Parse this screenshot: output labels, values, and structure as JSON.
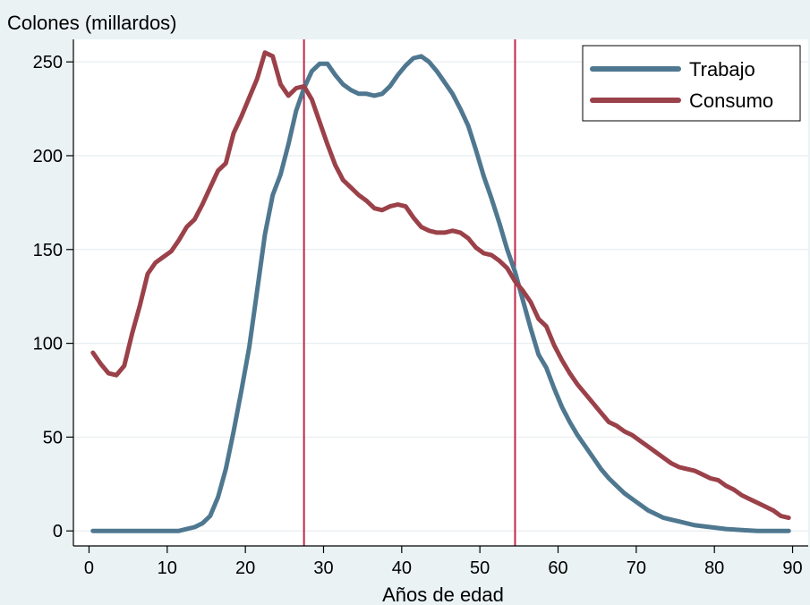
{
  "chart_data": {
    "type": "line",
    "ylabel": "Colones (millardos)",
    "xlabel": "Años de edad",
    "xlim": [
      -2,
      92
    ],
    "ylim": [
      -8,
      262
    ],
    "xticks": [
      0,
      10,
      20,
      30,
      40,
      50,
      60,
      70,
      80,
      90
    ],
    "yticks": [
      0,
      50,
      100,
      150,
      200,
      250
    ],
    "grid": true,
    "legend_position": "top-right",
    "vlines": [
      27.5,
      54.5
    ],
    "vline_color": "#c0274a",
    "series": [
      {
        "name": "Trabajo",
        "color": "#4f7890",
        "x": [
          0.5,
          2.5,
          4.5,
          6.5,
          8.5,
          10.5,
          11.5,
          12.5,
          13.5,
          14.5,
          15.5,
          16.5,
          17.5,
          18.5,
          19.5,
          20.5,
          21.5,
          22.5,
          23.5,
          24.5,
          25.5,
          26.5,
          27.5,
          28.5,
          29.5,
          30.5,
          31.5,
          32.5,
          33.5,
          34.5,
          35.5,
          36.5,
          37.5,
          38.5,
          39.5,
          40.5,
          41.5,
          42.5,
          43.5,
          44.5,
          45.5,
          46.5,
          47.5,
          48.5,
          49.5,
          50.5,
          51.5,
          52.5,
          53.5,
          54.5,
          55.5,
          56.5,
          57.5,
          58.5,
          59.5,
          60.5,
          61.5,
          62.5,
          63.5,
          64.5,
          65.5,
          66.5,
          67.5,
          68.5,
          69.5,
          70.5,
          71.5,
          72.5,
          73.5,
          74.5,
          75.5,
          77.5,
          79.5,
          81.5,
          83.5,
          85.5,
          87.5,
          89.5
        ],
        "y": [
          0,
          0,
          0,
          0,
          0,
          0,
          0,
          1,
          2,
          4,
          8,
          18,
          33,
          53,
          75,
          98,
          128,
          158,
          179,
          190,
          206,
          224,
          236,
          245,
          249,
          249,
          243,
          238,
          235,
          233,
          233,
          232,
          233,
          237,
          243,
          248,
          252,
          253,
          250,
          245,
          239,
          233,
          225,
          216,
          203,
          189,
          177,
          164,
          150,
          138,
          123,
          108,
          94,
          87,
          76,
          66,
          58,
          51,
          45,
          39,
          33,
          28,
          24,
          20,
          17,
          14,
          11,
          9,
          7,
          6,
          5,
          3,
          2,
          1,
          0.5,
          0,
          0,
          0
        ]
      },
      {
        "name": "Consumo",
        "color": "#9b4149",
        "x": [
          0.5,
          1.5,
          2.5,
          3.5,
          4.5,
          5.5,
          6.5,
          7.5,
          8.5,
          9.5,
          10.5,
          11.5,
          12.5,
          13.5,
          14.5,
          15.5,
          16.5,
          17.5,
          18.5,
          19.5,
          20.5,
          21.5,
          22.5,
          23.5,
          24.5,
          25.5,
          26.5,
          27.5,
          28.5,
          29.5,
          30.5,
          31.5,
          32.5,
          33.5,
          34.5,
          35.5,
          36.5,
          37.5,
          38.5,
          39.5,
          40.5,
          41.5,
          42.5,
          43.5,
          44.5,
          45.5,
          46.5,
          47.5,
          48.5,
          49.5,
          50.5,
          51.5,
          52.5,
          53.5,
          54.5,
          55.5,
          56.5,
          57.5,
          58.5,
          59.5,
          60.5,
          61.5,
          62.5,
          63.5,
          64.5,
          65.5,
          66.5,
          67.5,
          68.5,
          69.5,
          70.5,
          71.5,
          72.5,
          73.5,
          74.5,
          75.5,
          76.5,
          77.5,
          78.5,
          79.5,
          80.5,
          81.5,
          82.5,
          83.5,
          84.5,
          85.5,
          86.5,
          87.5,
          88.5,
          89.5
        ],
        "y": [
          95,
          89,
          84,
          83,
          88,
          105,
          120,
          137,
          143,
          146,
          149,
          155,
          162,
          166,
          174,
          183,
          192,
          196,
          212,
          221,
          231,
          241,
          255,
          253,
          238,
          232,
          236,
          237,
          230,
          218,
          206,
          195,
          187,
          183,
          179,
          176,
          172,
          171,
          173,
          174,
          173,
          167,
          162,
          160,
          159,
          159,
          160,
          159,
          156,
          151,
          148,
          147,
          144,
          140,
          133,
          128,
          122,
          113,
          109,
          99,
          91,
          84,
          78,
          73,
          68,
          63,
          58,
          56,
          53,
          51,
          48,
          45,
          42,
          39,
          36,
          34,
          33,
          32,
          30,
          28,
          27,
          24,
          22,
          19,
          17,
          15,
          13,
          11,
          8,
          7
        ]
      }
    ]
  }
}
